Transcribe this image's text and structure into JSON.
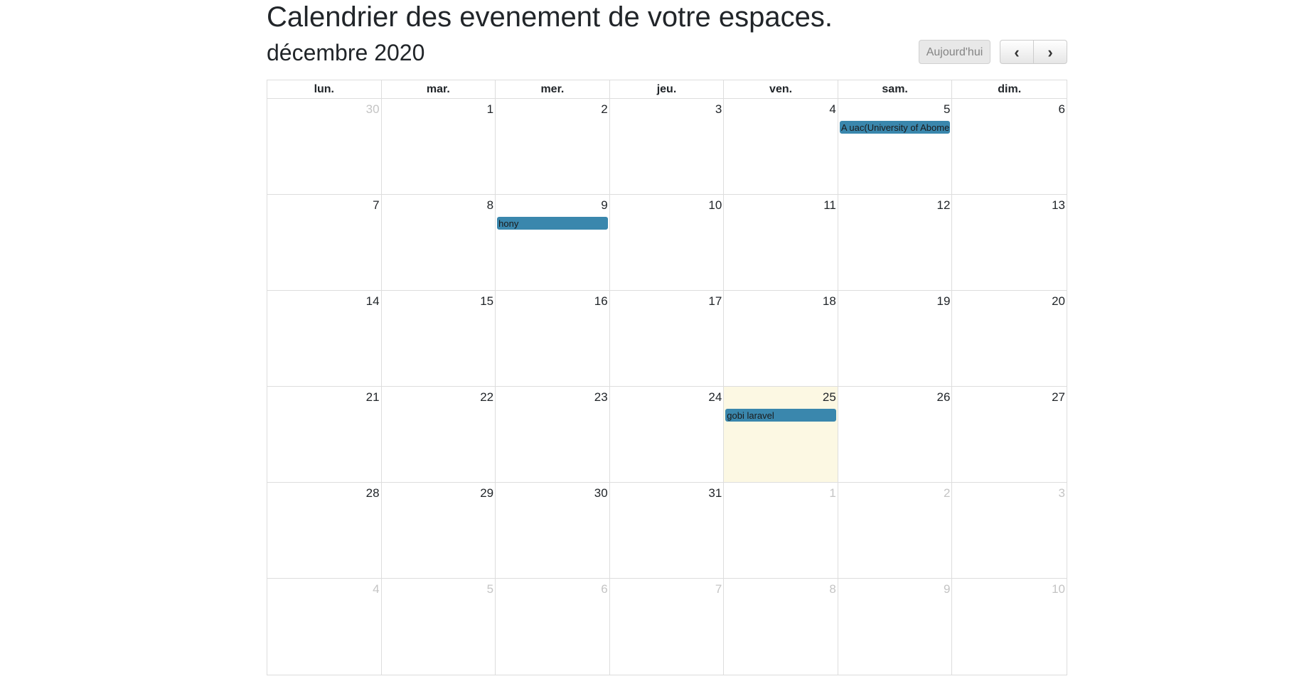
{
  "page_title": "Calendrier des evenement de votre espaces.",
  "toolbar": {
    "month_title": "décembre 2020",
    "today_label": "Aujourd'hui",
    "prev_icon": "chevron-left-icon",
    "prev_glyph": "‹",
    "next_icon": "chevron-right-icon",
    "next_glyph": "›"
  },
  "colors": {
    "event_bg": "#3a87ad",
    "today_bg": "#fcf8e3",
    "other_month_text": "#c4c4c4",
    "border": "#dddddd"
  },
  "weekdays": [
    "lun.",
    "mar.",
    "mer.",
    "jeu.",
    "ven.",
    "sam.",
    "dim."
  ],
  "weeks": [
    [
      {
        "day": "30",
        "other": true
      },
      {
        "day": "1"
      },
      {
        "day": "2"
      },
      {
        "day": "3"
      },
      {
        "day": "4"
      },
      {
        "day": "5",
        "event": "A uac(University of Abomey Calavi)"
      },
      {
        "day": "6"
      }
    ],
    [
      {
        "day": "7"
      },
      {
        "day": "8"
      },
      {
        "day": "9",
        "event": "hony"
      },
      {
        "day": "10"
      },
      {
        "day": "11"
      },
      {
        "day": "12"
      },
      {
        "day": "13"
      }
    ],
    [
      {
        "day": "14"
      },
      {
        "day": "15"
      },
      {
        "day": "16"
      },
      {
        "day": "17"
      },
      {
        "day": "18"
      },
      {
        "day": "19"
      },
      {
        "day": "20"
      }
    ],
    [
      {
        "day": "21"
      },
      {
        "day": "22"
      },
      {
        "day": "23"
      },
      {
        "day": "24"
      },
      {
        "day": "25",
        "today": true,
        "event": "gobi laravel"
      },
      {
        "day": "26"
      },
      {
        "day": "27"
      }
    ],
    [
      {
        "day": "28"
      },
      {
        "day": "29"
      },
      {
        "day": "30"
      },
      {
        "day": "31"
      },
      {
        "day": "1",
        "other": true
      },
      {
        "day": "2",
        "other": true
      },
      {
        "day": "3",
        "other": true
      }
    ],
    [
      {
        "day": "4",
        "other": true
      },
      {
        "day": "5",
        "other": true
      },
      {
        "day": "6",
        "other": true
      },
      {
        "day": "7",
        "other": true
      },
      {
        "day": "8",
        "other": true
      },
      {
        "day": "9",
        "other": true
      },
      {
        "day": "10",
        "other": true
      }
    ]
  ]
}
